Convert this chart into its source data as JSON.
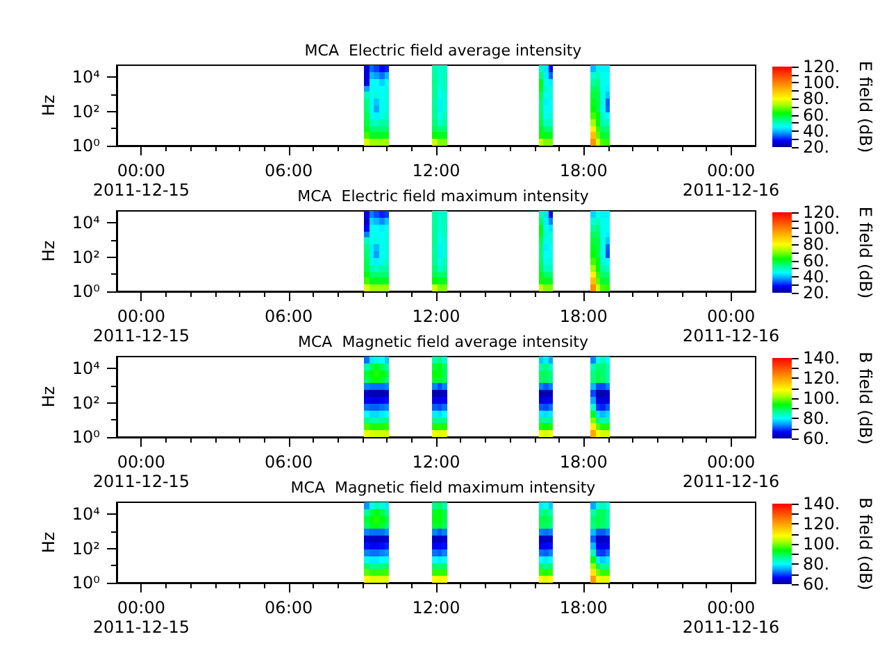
{
  "chart_data": [
    {
      "type": "heatmap",
      "title": "MCA  Electric field average intensity",
      "ylabel": "Hz",
      "clabel": "E field (dB)",
      "log": "y",
      "x": [
        "2011-12-15T09:11",
        "2011-12-15T09:23",
        "2011-12-15T09:35",
        "2011-12-15T09:47",
        "2011-12-15T09:59",
        "2011-12-15T10:11",
        "2011-12-15T11:44",
        "2011-12-15T11:56",
        "2011-12-15T12:08",
        "2011-12-15T12:20",
        "2011-12-15T12:32",
        "2011-12-15T16:04",
        "2011-12-15T16:16",
        "2011-12-15T16:28",
        "2011-12-15T16:40",
        "2011-12-15T16:52",
        "2011-12-15T18:11",
        "2011-12-15T18:23",
        "2011-12-15T18:35",
        "2011-12-15T18:47",
        "2011-12-15T18:59"
      ],
      "cells": [
        [
          25,
          35,
          32,
          28,
          30,
          null,
          null,
          51,
          49,
          49,
          null,
          null,
          50,
          43,
          27,
          null,
          null,
          40,
          44,
          44,
          44
        ],
        [
          25,
          40,
          38,
          35,
          40,
          null,
          null,
          52,
          48,
          50,
          null,
          null,
          55,
          44,
          34,
          null,
          null,
          48,
          50,
          46,
          46
        ],
        [
          26,
          45,
          45,
          42,
          46,
          null,
          null,
          53,
          48,
          50,
          null,
          null,
          61,
          46,
          44,
          null,
          null,
          52,
          54,
          46,
          46
        ],
        [
          38,
          46,
          46,
          45,
          47,
          null,
          null,
          53,
          46,
          50,
          null,
          null,
          60,
          48,
          47,
          null,
          null,
          56,
          56,
          46,
          44
        ],
        [
          50,
          46,
          47,
          46,
          47,
          null,
          null,
          53,
          46,
          48,
          null,
          null,
          57,
          46,
          47,
          null,
          null,
          58,
          58,
          47,
          41
        ],
        [
          54,
          45,
          41,
          46,
          47,
          null,
          null,
          52,
          44,
          48,
          null,
          null,
          55,
          44,
          46,
          null,
          null,
          60,
          58,
          47,
          34
        ],
        [
          55,
          45,
          39,
          46,
          47,
          null,
          null,
          53,
          44,
          48,
          null,
          null,
          55,
          45,
          46,
          null,
          null,
          62,
          58,
          46,
          35
        ],
        [
          57,
          47,
          44,
          47,
          49,
          null,
          null,
          53,
          46,
          50,
          null,
          null,
          56,
          46,
          48,
          null,
          null,
          66,
          62,
          48,
          45
        ],
        [
          58,
          51,
          49,
          52,
          51,
          null,
          null,
          55,
          48,
          52,
          null,
          null,
          58,
          49,
          50,
          null,
          null,
          72,
          62,
          51,
          50
        ],
        [
          61,
          55,
          55,
          55,
          55,
          null,
          null,
          57,
          55,
          55,
          null,
          null,
          60,
          55,
          55,
          null,
          null,
          82,
          65,
          55,
          55
        ],
        [
          66,
          60,
          60,
          60,
          60,
          null,
          null,
          62,
          60,
          60,
          null,
          null,
          63,
          60,
          60,
          null,
          null,
          90,
          68,
          59,
          58
        ],
        [
          77,
          72,
          72,
          72,
          72,
          null,
          null,
          76,
          70,
          70,
          null,
          null,
          75,
          70,
          70,
          null,
          null,
          97,
          76,
          66,
          65
        ]
      ],
      "clim": [
        20,
        120
      ],
      "cticks": [
        {
          "value": 20,
          "label": "20."
        },
        {
          "value": 30,
          "label": null
        },
        {
          "value": 40,
          "label": "40."
        },
        {
          "value": 50,
          "label": null
        },
        {
          "value": 60,
          "label": "60."
        },
        {
          "value": 70,
          "label": null
        },
        {
          "value": 80,
          "label": "80."
        },
        {
          "value": 90,
          "label": null
        },
        {
          "value": 100,
          "label": "100."
        },
        {
          "value": 110,
          "label": null
        },
        {
          "value": 120,
          "label": "120."
        }
      ],
      "xlim": [
        "2011-12-14T23:00",
        "2011-12-16T01:00"
      ],
      "xticks": [
        {
          "value": "2011-12-15T00:00",
          "label": "00:00\n2011-12-15"
        },
        {
          "value": "2011-12-15T01:00",
          "label": null
        },
        {
          "value": "2011-12-15T02:00",
          "label": null
        },
        {
          "value": "2011-12-15T03:00",
          "label": null
        },
        {
          "value": "2011-12-15T04:00",
          "label": null
        },
        {
          "value": "2011-12-15T05:00",
          "label": null
        },
        {
          "value": "2011-12-15T06:00",
          "label": "06:00"
        },
        {
          "value": "2011-12-15T07:00",
          "label": null
        },
        {
          "value": "2011-12-15T08:00",
          "label": null
        },
        {
          "value": "2011-12-15T09:00",
          "label": null
        },
        {
          "value": "2011-12-15T10:00",
          "label": null
        },
        {
          "value": "2011-12-15T11:00",
          "label": null
        },
        {
          "value": "2011-12-15T12:00",
          "label": "12:00"
        },
        {
          "value": "2011-12-15T13:00",
          "label": null
        },
        {
          "value": "2011-12-15T14:00",
          "label": null
        },
        {
          "value": "2011-12-15T15:00",
          "label": null
        },
        {
          "value": "2011-12-15T16:00",
          "label": null
        },
        {
          "value": "2011-12-15T17:00",
          "label": null
        },
        {
          "value": "2011-12-15T18:00",
          "label": "18:00"
        },
        {
          "value": "2011-12-15T19:00",
          "label": null
        },
        {
          "value": "2011-12-15T20:00",
          "label": null
        },
        {
          "value": "2011-12-15T21:00",
          "label": null
        },
        {
          "value": "2011-12-15T22:00",
          "label": null
        },
        {
          "value": "2011-12-15T23:00",
          "label": null
        },
        {
          "value": "2011-12-16T00:00",
          "label": "00:00\n2011-12-16"
        }
      ],
      "ylim": [
        1,
        50000
      ],
      "yticks": [
        {
          "value": 1,
          "label": "10⁰"
        },
        {
          "value": 10,
          "label": null
        },
        {
          "value": 100,
          "label": "10²"
        },
        {
          "value": 1000,
          "label": null
        },
        {
          "value": 10000,
          "label": "10⁴"
        }
      ]
    },
    {
      "type": "heatmap",
      "title": "MCA  Electric field maximum intensity",
      "ylabel": "Hz",
      "clabel": "E field (dB)",
      "log": "y",
      "x": [
        "2011-12-15T09:11",
        "2011-12-15T09:23",
        "2011-12-15T09:35",
        "2011-12-15T09:47",
        "2011-12-15T09:59",
        "2011-12-15T10:11",
        "2011-12-15T11:44",
        "2011-12-15T11:56",
        "2011-12-15T12:08",
        "2011-12-15T12:20",
        "2011-12-15T12:32",
        "2011-12-15T16:04",
        "2011-12-15T16:16",
        "2011-12-15T16:28",
        "2011-12-15T16:40",
        "2011-12-15T16:52",
        "2011-12-15T18:11",
        "2011-12-15T18:23",
        "2011-12-15T18:35",
        "2011-12-15T18:47",
        "2011-12-15T18:59"
      ],
      "cells": [
        [
          26,
          36,
          33,
          30,
          32,
          null,
          null,
          51,
          49,
          49,
          null,
          null,
          51,
          43,
          26,
          null,
          null,
          42,
          45,
          44,
          44
        ],
        [
          24,
          42,
          40,
          37,
          41,
          null,
          null,
          52,
          48,
          50,
          null,
          null,
          56,
          44,
          36,
          null,
          null,
          48,
          50,
          46,
          46
        ],
        [
          28,
          46,
          45,
          44,
          46,
          null,
          null,
          53,
          48,
          50,
          null,
          null,
          61,
          46,
          43,
          null,
          null,
          52,
          54,
          46,
          46
        ],
        [
          36,
          46,
          46,
          45,
          47,
          null,
          null,
          53,
          46,
          50,
          null,
          null,
          60,
          48,
          47,
          null,
          null,
          56,
          56,
          46,
          44
        ],
        [
          50,
          46,
          47,
          46,
          47,
          null,
          null,
          53,
          46,
          48,
          null,
          null,
          57,
          46,
          47,
          null,
          null,
          58,
          58,
          47,
          41
        ],
        [
          54,
          44,
          40,
          46,
          47,
          null,
          null,
          52,
          44,
          48,
          null,
          null,
          55,
          44,
          46,
          null,
          null,
          60,
          58,
          47,
          34
        ],
        [
          55,
          44,
          38,
          46,
          47,
          null,
          null,
          53,
          44,
          48,
          null,
          null,
          55,
          45,
          46,
          null,
          null,
          62,
          58,
          46,
          33
        ],
        [
          57,
          47,
          44,
          47,
          49,
          null,
          null,
          53,
          46,
          50,
          null,
          null,
          56,
          46,
          48,
          null,
          null,
          66,
          62,
          48,
          45
        ],
        [
          58,
          51,
          49,
          52,
          51,
          null,
          null,
          55,
          48,
          52,
          null,
          null,
          58,
          49,
          50,
          null,
          null,
          72,
          62,
          51,
          50
        ],
        [
          61,
          55,
          55,
          55,
          55,
          null,
          null,
          57,
          55,
          55,
          null,
          null,
          60,
          55,
          55,
          null,
          null,
          82,
          65,
          55,
          55
        ],
        [
          66,
          60,
          60,
          60,
          60,
          null,
          null,
          62,
          60,
          60,
          null,
          null,
          63,
          60,
          60,
          null,
          null,
          90,
          68,
          59,
          58
        ],
        [
          77,
          72,
          72,
          72,
          72,
          null,
          null,
          76,
          70,
          70,
          null,
          null,
          75,
          70,
          70,
          null,
          null,
          98,
          76,
          66,
          65
        ]
      ],
      "clim": [
        20,
        120
      ],
      "cticks": [
        {
          "value": 20,
          "label": "20."
        },
        {
          "value": 30,
          "label": null
        },
        {
          "value": 40,
          "label": "40."
        },
        {
          "value": 50,
          "label": null
        },
        {
          "value": 60,
          "label": "60."
        },
        {
          "value": 70,
          "label": null
        },
        {
          "value": 80,
          "label": "80."
        },
        {
          "value": 90,
          "label": null
        },
        {
          "value": 100,
          "label": "100."
        },
        {
          "value": 110,
          "label": null
        },
        {
          "value": 120,
          "label": "120."
        }
      ],
      "xlim": [
        "2011-12-14T23:00",
        "2011-12-16T01:00"
      ],
      "xticks": [
        {
          "value": "2011-12-15T00:00",
          "label": "00:00\n2011-12-15"
        },
        {
          "value": "2011-12-15T01:00",
          "label": null
        },
        {
          "value": "2011-12-15T02:00",
          "label": null
        },
        {
          "value": "2011-12-15T03:00",
          "label": null
        },
        {
          "value": "2011-12-15T04:00",
          "label": null
        },
        {
          "value": "2011-12-15T05:00",
          "label": null
        },
        {
          "value": "2011-12-15T06:00",
          "label": "06:00"
        },
        {
          "value": "2011-12-15T07:00",
          "label": null
        },
        {
          "value": "2011-12-15T08:00",
          "label": null
        },
        {
          "value": "2011-12-15T09:00",
          "label": null
        },
        {
          "value": "2011-12-15T10:00",
          "label": null
        },
        {
          "value": "2011-12-15T11:00",
          "label": null
        },
        {
          "value": "2011-12-15T12:00",
          "label": "12:00"
        },
        {
          "value": "2011-12-15T13:00",
          "label": null
        },
        {
          "value": "2011-12-15T14:00",
          "label": null
        },
        {
          "value": "2011-12-15T15:00",
          "label": null
        },
        {
          "value": "2011-12-15T16:00",
          "label": null
        },
        {
          "value": "2011-12-15T17:00",
          "label": null
        },
        {
          "value": "2011-12-15T18:00",
          "label": "18:00"
        },
        {
          "value": "2011-12-15T19:00",
          "label": null
        },
        {
          "value": "2011-12-15T20:00",
          "label": null
        },
        {
          "value": "2011-12-15T21:00",
          "label": null
        },
        {
          "value": "2011-12-15T22:00",
          "label": null
        },
        {
          "value": "2011-12-15T23:00",
          "label": null
        },
        {
          "value": "2011-12-16T00:00",
          "label": "00:00\n2011-12-16"
        }
      ],
      "ylim": [
        1,
        50000
      ],
      "yticks": [
        {
          "value": 1,
          "label": "10⁰"
        },
        {
          "value": 10,
          "label": null
        },
        {
          "value": 100,
          "label": "10²"
        },
        {
          "value": 1000,
          "label": null
        },
        {
          "value": 10000,
          "label": "10⁴"
        }
      ]
    },
    {
      "type": "heatmap",
      "title": "MCA  Magnetic field average intensity",
      "ylabel": "Hz",
      "clabel": "B field (dB)",
      "log": "y",
      "x": [
        "2011-12-15T09:11",
        "2011-12-15T09:23",
        "2011-12-15T09:35",
        "2011-12-15T09:47",
        "2011-12-15T09:59",
        "2011-12-15T10:11",
        "2011-12-15T11:44",
        "2011-12-15T11:56",
        "2011-12-15T12:08",
        "2011-12-15T12:20",
        "2011-12-15T12:32",
        "2011-12-15T16:04",
        "2011-12-15T16:16",
        "2011-12-15T16:28",
        "2011-12-15T16:40",
        "2011-12-15T16:52",
        "2011-12-15T18:11",
        "2011-12-15T18:23",
        "2011-12-15T18:35",
        "2011-12-15T18:47",
        "2011-12-15T18:59"
      ],
      "cells": [
        [
          72,
          79,
          82,
          80,
          77,
          null,
          null,
          85,
          87,
          83,
          null,
          null,
          77,
          79,
          75,
          null,
          null,
          73,
          80,
          84,
          80
        ],
        [
          85,
          89,
          92,
          89,
          85,
          null,
          null,
          91,
          93,
          89,
          null,
          null,
          85,
          87,
          83,
          null,
          null,
          84,
          88,
          88,
          85
        ],
        [
          91,
          93,
          95,
          93,
          90,
          null,
          null,
          93,
          94,
          89,
          null,
          null,
          89,
          89,
          87,
          null,
          null,
          87,
          90,
          88,
          85
        ],
        [
          89,
          92,
          94,
          91,
          88,
          null,
          null,
          91,
          91,
          89,
          null,
          null,
          89,
          89,
          87,
          null,
          null,
          87,
          90,
          88,
          85
        ],
        [
          73,
          72,
          72,
          72,
          73,
          null,
          null,
          73,
          70,
          73,
          null,
          null,
          73,
          71,
          73,
          null,
          null,
          76,
          70,
          70,
          73
        ],
        [
          63,
          62,
          62,
          62,
          63,
          null,
          null,
          62,
          62,
          63,
          null,
          null,
          62,
          62,
          62,
          null,
          null,
          70,
          62,
          62,
          63
        ],
        [
          66,
          65,
          65,
          66,
          67,
          null,
          null,
          65,
          65,
          66,
          null,
          null,
          65,
          65,
          66,
          null,
          null,
          75,
          65,
          64,
          65
        ],
        [
          72,
          71,
          71,
          72,
          73,
          null,
          null,
          71,
          70,
          72,
          null,
          null,
          71,
          70,
          72,
          null,
          null,
          83,
          69,
          68,
          71
        ],
        [
          80,
          78,
          78,
          79,
          80,
          null,
          null,
          79,
          78,
          80,
          null,
          null,
          79,
          78,
          79,
          null,
          null,
          92,
          78,
          76,
          78
        ],
        [
          87,
          85,
          85,
          86,
          87,
          null,
          null,
          87,
          86,
          87,
          null,
          null,
          87,
          85,
          87,
          null,
          null,
          100,
          88,
          84,
          85
        ],
        [
          97,
          95,
          95,
          95,
          96,
          null,
          null,
          95,
          95,
          95,
          null,
          null,
          95,
          94,
          95,
          null,
          null,
          110,
          98,
          95,
          95
        ],
        [
          107,
          105,
          105,
          105,
          105,
          null,
          null,
          107,
          106,
          107,
          null,
          null,
          107,
          105,
          107,
          null,
          null,
          119,
          108,
          105,
          105
        ]
      ],
      "clim": [
        60,
        140
      ],
      "cticks": [
        {
          "value": 60,
          "label": "60."
        },
        {
          "value": 70,
          "label": null
        },
        {
          "value": 80,
          "label": "80."
        },
        {
          "value": 90,
          "label": null
        },
        {
          "value": 100,
          "label": "100."
        },
        {
          "value": 110,
          "label": null
        },
        {
          "value": 120,
          "label": "120."
        },
        {
          "value": 130,
          "label": null
        },
        {
          "value": 140,
          "label": "140."
        }
      ],
      "xlim": [
        "2011-12-14T23:00",
        "2011-12-16T01:00"
      ],
      "xticks": [
        {
          "value": "2011-12-15T00:00",
          "label": "00:00\n2011-12-15"
        },
        {
          "value": "2011-12-15T01:00",
          "label": null
        },
        {
          "value": "2011-12-15T02:00",
          "label": null
        },
        {
          "value": "2011-12-15T03:00",
          "label": null
        },
        {
          "value": "2011-12-15T04:00",
          "label": null
        },
        {
          "value": "2011-12-15T05:00",
          "label": null
        },
        {
          "value": "2011-12-15T06:00",
          "label": "06:00"
        },
        {
          "value": "2011-12-15T07:00",
          "label": null
        },
        {
          "value": "2011-12-15T08:00",
          "label": null
        },
        {
          "value": "2011-12-15T09:00",
          "label": null
        },
        {
          "value": "2011-12-15T10:00",
          "label": null
        },
        {
          "value": "2011-12-15T11:00",
          "label": null
        },
        {
          "value": "2011-12-15T12:00",
          "label": "12:00"
        },
        {
          "value": "2011-12-15T13:00",
          "label": null
        },
        {
          "value": "2011-12-15T14:00",
          "label": null
        },
        {
          "value": "2011-12-15T15:00",
          "label": null
        },
        {
          "value": "2011-12-15T16:00",
          "label": null
        },
        {
          "value": "2011-12-15T17:00",
          "label": null
        },
        {
          "value": "2011-12-15T18:00",
          "label": "18:00"
        },
        {
          "value": "2011-12-15T19:00",
          "label": null
        },
        {
          "value": "2011-12-15T20:00",
          "label": null
        },
        {
          "value": "2011-12-15T21:00",
          "label": null
        },
        {
          "value": "2011-12-15T22:00",
          "label": null
        },
        {
          "value": "2011-12-15T23:00",
          "label": null
        },
        {
          "value": "2011-12-16T00:00",
          "label": "00:00\n2011-12-16"
        }
      ],
      "ylim": [
        1,
        50000
      ],
      "yticks": [
        {
          "value": 1,
          "label": "10⁰"
        },
        {
          "value": 10,
          "label": null
        },
        {
          "value": 100,
          "label": "10²"
        },
        {
          "value": 1000,
          "label": null
        },
        {
          "value": 10000,
          "label": "10⁴"
        }
      ]
    },
    {
      "type": "heatmap",
      "title": "MCA  Magnetic field maximum intensity",
      "ylabel": "Hz",
      "clabel": "B field (dB)",
      "log": "y",
      "x": [
        "2011-12-15T09:11",
        "2011-12-15T09:23",
        "2011-12-15T09:35",
        "2011-12-15T09:47",
        "2011-12-15T09:59",
        "2011-12-15T10:11",
        "2011-12-15T11:44",
        "2011-12-15T11:56",
        "2011-12-15T12:08",
        "2011-12-15T12:20",
        "2011-12-15T12:32",
        "2011-12-15T16:04",
        "2011-12-15T16:16",
        "2011-12-15T16:28",
        "2011-12-15T16:40",
        "2011-12-15T16:52",
        "2011-12-15T18:11",
        "2011-12-15T18:23",
        "2011-12-15T18:35",
        "2011-12-15T18:47",
        "2011-12-15T18:59"
      ],
      "cells": [
        [
          74,
          81,
          84,
          82,
          79,
          null,
          null,
          87,
          89,
          85,
          null,
          null,
          79,
          81,
          77,
          null,
          null,
          75,
          82,
          85,
          81
        ],
        [
          86,
          90,
          93,
          90,
          86,
          null,
          null,
          92,
          94,
          90,
          null,
          null,
          86,
          88,
          84,
          null,
          null,
          85,
          89,
          89,
          86
        ],
        [
          91,
          93,
          95,
          93,
          90,
          null,
          null,
          93,
          94,
          90,
          null,
          null,
          90,
          90,
          88,
          null,
          null,
          88,
          90,
          89,
          86
        ],
        [
          89,
          92,
          94,
          91,
          88,
          null,
          null,
          91,
          92,
          89,
          null,
          null,
          89,
          89,
          87,
          null,
          null,
          87,
          90,
          88,
          86
        ],
        [
          73,
          72,
          72,
          72,
          74,
          null,
          null,
          73,
          71,
          73,
          null,
          null,
          73,
          72,
          73,
          null,
          null,
          76,
          71,
          71,
          73
        ],
        [
          64,
          63,
          63,
          63,
          64,
          null,
          null,
          63,
          63,
          64,
          null,
          null,
          63,
          63,
          63,
          null,
          null,
          71,
          63,
          63,
          64
        ],
        [
          67,
          66,
          66,
          67,
          68,
          null,
          null,
          66,
          66,
          67,
          null,
          null,
          66,
          66,
          67,
          null,
          null,
          76,
          66,
          65,
          66
        ],
        [
          73,
          72,
          72,
          73,
          74,
          null,
          null,
          72,
          71,
          73,
          null,
          null,
          72,
          71,
          73,
          null,
          null,
          84,
          70,
          69,
          72
        ],
        [
          81,
          79,
          79,
          80,
          81,
          null,
          null,
          80,
          79,
          81,
          null,
          null,
          80,
          79,
          80,
          null,
          null,
          93,
          79,
          77,
          79
        ],
        [
          88,
          86,
          86,
          87,
          88,
          null,
          null,
          88,
          87,
          88,
          null,
          null,
          88,
          86,
          88,
          null,
          null,
          101,
          89,
          85,
          86
        ],
        [
          98,
          96,
          96,
          96,
          97,
          null,
          null,
          96,
          96,
          96,
          null,
          null,
          96,
          95,
          96,
          null,
          null,
          111,
          99,
          96,
          96
        ],
        [
          108,
          106,
          106,
          106,
          106,
          null,
          null,
          108,
          107,
          108,
          null,
          null,
          108,
          106,
          108,
          null,
          null,
          120,
          109,
          106,
          106
        ]
      ],
      "clim": [
        60,
        140
      ],
      "cticks": [
        {
          "value": 60,
          "label": "60."
        },
        {
          "value": 70,
          "label": null
        },
        {
          "value": 80,
          "label": "80."
        },
        {
          "value": 90,
          "label": null
        },
        {
          "value": 100,
          "label": "100."
        },
        {
          "value": 110,
          "label": null
        },
        {
          "value": 120,
          "label": "120."
        },
        {
          "value": 130,
          "label": null
        },
        {
          "value": 140,
          "label": "140."
        }
      ],
      "xlim": [
        "2011-12-14T23:00",
        "2011-12-16T01:00"
      ],
      "xticks": [
        {
          "value": "2011-12-15T00:00",
          "label": "00:00\n2011-12-15"
        },
        {
          "value": "2011-12-15T01:00",
          "label": null
        },
        {
          "value": "2011-12-15T02:00",
          "label": null
        },
        {
          "value": "2011-12-15T03:00",
          "label": null
        },
        {
          "value": "2011-12-15T04:00",
          "label": null
        },
        {
          "value": "2011-12-15T05:00",
          "label": null
        },
        {
          "value": "2011-12-15T06:00",
          "label": "06:00"
        },
        {
          "value": "2011-12-15T07:00",
          "label": null
        },
        {
          "value": "2011-12-15T08:00",
          "label": null
        },
        {
          "value": "2011-12-15T09:00",
          "label": null
        },
        {
          "value": "2011-12-15T10:00",
          "label": null
        },
        {
          "value": "2011-12-15T11:00",
          "label": null
        },
        {
          "value": "2011-12-15T12:00",
          "label": "12:00"
        },
        {
          "value": "2011-12-15T13:00",
          "label": null
        },
        {
          "value": "2011-12-15T14:00",
          "label": null
        },
        {
          "value": "2011-12-15T15:00",
          "label": null
        },
        {
          "value": "2011-12-15T16:00",
          "label": null
        },
        {
          "value": "2011-12-15T17:00",
          "label": null
        },
        {
          "value": "2011-12-15T18:00",
          "label": "18:00"
        },
        {
          "value": "2011-12-15T19:00",
          "label": null
        },
        {
          "value": "2011-12-15T20:00",
          "label": null
        },
        {
          "value": "2011-12-15T21:00",
          "label": null
        },
        {
          "value": "2011-12-15T22:00",
          "label": null
        },
        {
          "value": "2011-12-15T23:00",
          "label": null
        },
        {
          "value": "2011-12-16T00:00",
          "label": "00:00\n2011-12-16"
        }
      ],
      "ylim": [
        1,
        50000
      ],
      "yticks": [
        {
          "value": 1,
          "label": "10⁰"
        },
        {
          "value": 10,
          "label": null
        },
        {
          "value": 100,
          "label": "10²"
        },
        {
          "value": 1000,
          "label": null
        },
        {
          "value": 10000,
          "label": "10⁴"
        }
      ]
    }
  ]
}
